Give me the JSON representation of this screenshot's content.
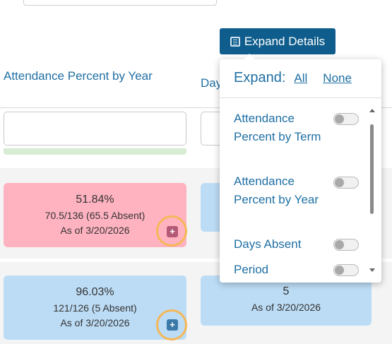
{
  "toolbar": {
    "expand_label": "Expand Details"
  },
  "columns": {
    "col1_header": "Attendance Percent by Year",
    "col2_header_partial": "Day"
  },
  "rows": [
    {
      "col1": {
        "percent": "51.84%",
        "detail": "70.5/136 (65.5 Absent)",
        "as_of": "As of 3/20/2026",
        "color": "#ffb3c1",
        "expand_glyph": "+"
      },
      "col2": {
        "color": "#bcdcf5"
      }
    },
    {
      "col1": {
        "percent": "96.03%",
        "detail": "121/126 (5 Absent)",
        "as_of": "As of 3/20/2026",
        "color": "#bcdcf5",
        "expand_glyph": "+"
      },
      "col2": {
        "value": "5",
        "as_of": "As of 3/20/2026",
        "color": "#bcdcf5"
      }
    }
  ],
  "expand_popup": {
    "title": "Expand:",
    "all_link": "All",
    "none_link": "None",
    "options": [
      {
        "label": "Attendance Percent by Term",
        "enabled": false
      },
      {
        "label": "Attendance Percent by Year",
        "enabled": false
      },
      {
        "label": "Days Absent",
        "enabled": false
      },
      {
        "label": "Period",
        "enabled": false
      }
    ]
  },
  "colors": {
    "accent": "#0f5d8c",
    "link": "#1f6fa3",
    "highlight_ring": "#f5b757"
  }
}
